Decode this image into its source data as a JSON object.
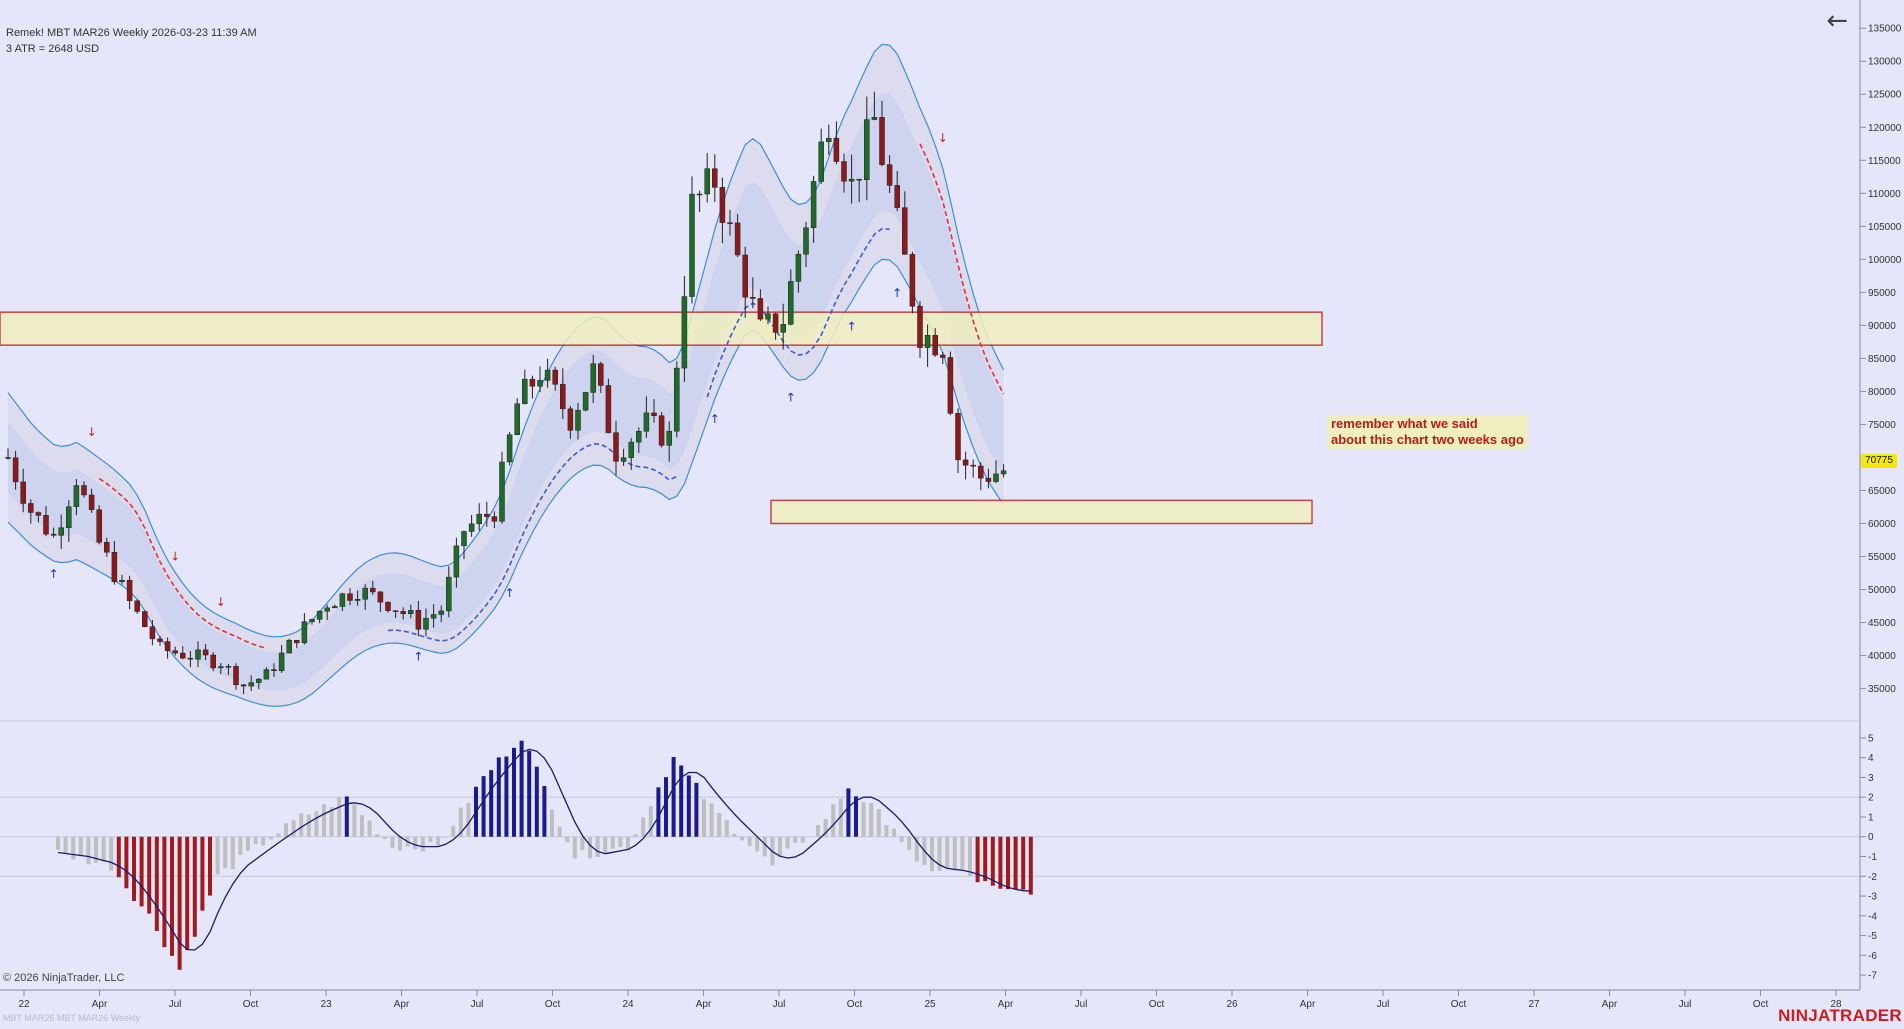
{
  "header": {
    "line1": "Remek!  MBT MAR26  Weekly  2026-03-23 11:39 AM",
    "line2": "3 ATR = 2648 USD"
  },
  "back_icon": "arrow-left-icon",
  "copyright": "© 2026 NinjaTrader, LLC",
  "instrument_watermark": "MBT MAR26 MBT MAR26 Weekly",
  "brand": "NINJATRADER",
  "annotation": "remember what we said\nabout this chart two weeks ago",
  "last_price": "70775",
  "colors": {
    "background": "#e6e6fa",
    "up_candle": "#1e6b2a",
    "down_candle": "#8b1a1a",
    "band_line": "#3a8fd8",
    "zone_fill": "#f0efc0",
    "zone_border": "#c0272d",
    "hist_up": "#1a1a8c",
    "hist_down": "#a01c1c",
    "hist_neutral": "#bfbfbf",
    "trail_down": "#e0303a",
    "trail_up": "#3a5bd9"
  },
  "chart_data": [
    {
      "type": "candlestick",
      "title": "",
      "x": [
        "22",
        "Apr",
        "Jul",
        "Oct",
        "23",
        "Apr",
        "Jul",
        "Oct",
        "24",
        "Apr",
        "Jul",
        "Oct",
        "25",
        "Apr",
        "Jul",
        "Oct",
        "26",
        "Apr",
        "Jul",
        "Oct",
        "27",
        "Apr",
        "Jul",
        "Oct",
        "28"
      ],
      "y_ticks": [
        35000,
        40000,
        45000,
        50000,
        55000,
        60000,
        65000,
        70000,
        75000,
        80000,
        85000,
        90000,
        95000,
        100000,
        105000,
        110000,
        115000,
        120000,
        125000,
        130000,
        135000
      ],
      "ylim": [
        31000,
        137000
      ],
      "series": [
        {
          "close": [
            [
              0,
              70000
            ],
            [
              3,
              62000
            ],
            [
              6,
              58000
            ],
            [
              9,
              67000
            ],
            [
              12,
              57000
            ],
            [
              16,
              48000
            ],
            [
              20,
              41000
            ],
            [
              24,
              40000
            ],
            [
              28,
              39000
            ],
            [
              31,
              35500
            ],
            [
              34,
              37000
            ],
            [
              38,
              43000
            ],
            [
              42,
              48000
            ],
            [
              46,
              50000
            ],
            [
              50,
              48000
            ],
            [
              54,
              45000
            ],
            [
              57,
              47000
            ],
            [
              60,
              59000
            ],
            [
              64,
              62000
            ],
            [
              67,
              78000
            ],
            [
              70,
              83000
            ],
            [
              74,
              76000
            ],
            [
              77,
              83000
            ],
            [
              80,
              71000
            ],
            [
              84,
              75000
            ],
            [
              87,
              73000
            ],
            [
              90,
              108000
            ],
            [
              93,
              112000
            ],
            [
              96,
              100000
            ],
            [
              99,
              89000
            ],
            [
              102,
              91000
            ],
            [
              105,
              106000
            ],
            [
              108,
              122000
            ],
            [
              111,
              111000
            ],
            [
              114,
              121000
            ],
            [
              117,
              105000
            ],
            [
              120,
              89000
            ],
            [
              123,
              87000
            ],
            [
              125,
              70000
            ],
            [
              128,
              67000
            ],
            [
              131,
              68000
            ]
          ]
        }
      ],
      "zones": [
        [
          87000,
          92000
        ],
        [
          60000,
          63500
        ]
      ]
    },
    {
      "type": "bar",
      "title": "",
      "y_ticks": [
        5,
        4,
        3,
        2,
        1,
        0,
        -1,
        -2,
        -3,
        -4,
        -5,
        -6,
        -7
      ],
      "ylim": [
        -7.5,
        5.5
      ],
      "values": [
        [
          0,
          -0.8
        ],
        [
          7,
          -1.5
        ],
        [
          12,
          -4
        ],
        [
          16,
          -6.7
        ],
        [
          21,
          -2
        ],
        [
          27,
          -0.3
        ],
        [
          32,
          1
        ],
        [
          38,
          2
        ],
        [
          44,
          -0.5
        ],
        [
          50,
          -0.5
        ],
        [
          56,
          3
        ],
        [
          61,
          5.1
        ],
        [
          68,
          -1
        ],
        [
          75,
          -0.5
        ],
        [
          81,
          4
        ],
        [
          86,
          1.5
        ],
        [
          94,
          -1.5
        ],
        [
          100,
          0.5
        ],
        [
          104,
          2.5
        ],
        [
          110,
          0.5
        ],
        [
          113,
          -1.5
        ],
        [
          119,
          -1.8
        ],
        [
          124,
          -2.8
        ],
        [
          128,
          -2.7
        ]
      ]
    }
  ]
}
